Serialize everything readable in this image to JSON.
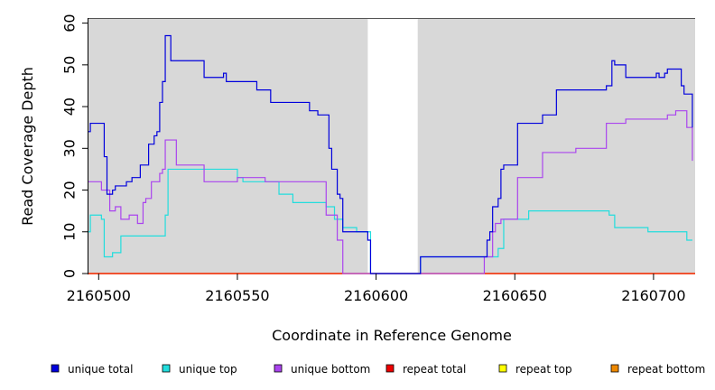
{
  "chart_data": {
    "type": "line",
    "title": "",
    "xlabel": "Coordinate in Reference Genome",
    "ylabel": "Read Coverage Depth",
    "xlim": [
      2160496,
      2160715
    ],
    "ylim": [
      0,
      61
    ],
    "x_ticks": [
      2160500,
      2160550,
      2160600,
      2160650,
      2160700
    ],
    "x_tick_labels": [
      "2160500",
      "2160550",
      "2160600",
      "2160650",
      "2160700"
    ],
    "y_ticks": [
      0,
      10,
      20,
      30,
      40,
      50,
      60
    ],
    "y_tick_labels": [
      "0",
      "10",
      "20",
      "30",
      "40",
      "50",
      "60"
    ],
    "plot_background": "#d8d8d8",
    "uncovered_region": [
      2160597,
      2160615
    ],
    "uncovered_color": "#ffffff",
    "grid": false,
    "legend_position": "bottom",
    "series": [
      {
        "name": "unique total",
        "color": "#0000dd",
        "step": true,
        "x": [
          2160496,
          2160497,
          2160501,
          2160502,
          2160503,
          2160505,
          2160506,
          2160507,
          2160508,
          2160510,
          2160511,
          2160512,
          2160513,
          2160514,
          2160515,
          2160518,
          2160519,
          2160520,
          2160521,
          2160522,
          2160523,
          2160524,
          2160525,
          2160526,
          2160528,
          2160538,
          2160545,
          2160545,
          2160546,
          2160557,
          2160558,
          2160562,
          2160564,
          2160576,
          2160577,
          2160579,
          2160579,
          2160582,
          2160583,
          2160584,
          2160586,
          2160587,
          2160588,
          2160589,
          2160597,
          2160597,
          2160598,
          2160615,
          2160616,
          2160637,
          2160640,
          2160641,
          2160642,
          2160644,
          2160645,
          2160646,
          2160646,
          2160648,
          2160651,
          2160652,
          2160660,
          2160665,
          2160667,
          2160683,
          2160684,
          2160685,
          2160686,
          2160690,
          2160701,
          2160702,
          2160704,
          2160705,
          2160708,
          2160710,
          2160711,
          2160714
        ],
        "y": [
          34,
          36,
          36,
          28,
          19,
          20,
          21,
          21,
          21,
          22,
          22,
          23,
          23,
          23,
          26,
          31,
          31,
          33,
          34,
          41,
          46,
          57,
          57,
          51,
          51,
          47,
          47,
          48,
          46,
          44,
          44,
          41,
          41,
          39,
          39,
          38,
          38,
          38,
          30,
          25,
          19,
          18,
          10,
          10,
          10,
          8,
          0,
          0,
          4,
          4,
          8,
          10,
          16,
          18,
          25,
          26,
          26,
          26,
          36,
          36,
          38,
          44,
          44,
          45,
          45,
          51,
          50,
          47,
          48,
          47,
          48,
          49,
          49,
          45,
          43,
          35
        ]
      },
      {
        "name": "unique top",
        "color": "#22dddd",
        "step": true,
        "x": [
          2160496,
          2160497,
          2160501,
          2160502,
          2160503,
          2160505,
          2160508,
          2160510,
          2160524,
          2160525,
          2160526,
          2160540,
          2160550,
          2160552,
          2160562,
          2160565,
          2160570,
          2160575,
          2160582,
          2160585,
          2160588,
          2160593,
          2160597,
          2160598,
          2160615,
          2160616,
          2160637,
          2160641,
          2160644,
          2160646,
          2160650,
          2160655,
          2160670,
          2160683,
          2160684,
          2160686,
          2160690,
          2160698,
          2160712,
          2160714
        ],
        "y": [
          10,
          14,
          13,
          4,
          4,
          5,
          9,
          9,
          14,
          25,
          25,
          25,
          23,
          22,
          22,
          19,
          17,
          17,
          16,
          13,
          11,
          10,
          10,
          0,
          0,
          4,
          4,
          4,
          6,
          13,
          13,
          15,
          15,
          15,
          14,
          11,
          11,
          10,
          8,
          8
        ]
      },
      {
        "name": "unique bottom",
        "color": "#aa44ee",
        "step": true,
        "x": [
          2160496,
          2160501,
          2160504,
          2160506,
          2160508,
          2160510,
          2160511,
          2160514,
          2160516,
          2160517,
          2160519,
          2160521,
          2160522,
          2160523,
          2160524,
          2160528,
          2160538,
          2160548,
          2160550,
          2160560,
          2160565,
          2160576,
          2160582,
          2160586,
          2160588,
          2160589,
          2160639,
          2160642,
          2160643,
          2160645,
          2160648,
          2160651,
          2160656,
          2160660,
          2160672,
          2160683,
          2160690,
          2160705,
          2160708,
          2160712,
          2160714
        ],
        "y": [
          22,
          20,
          15,
          16,
          13,
          13,
          14,
          12,
          17,
          18,
          22,
          22,
          24,
          25,
          32,
          26,
          22,
          22,
          23,
          22,
          22,
          22,
          14,
          8,
          0,
          0,
          4,
          10,
          12,
          13,
          13,
          23,
          23,
          29,
          30,
          36,
          37,
          38,
          39,
          35,
          27
        ]
      },
      {
        "name": "repeat total",
        "color": "#ee0000",
        "step": true,
        "x": [
          2160496,
          2160715
        ],
        "y": [
          0,
          0
        ]
      },
      {
        "name": "repeat top",
        "color": "#ffff00",
        "step": true,
        "x": [
          2160496,
          2160715
        ],
        "y": [
          0,
          0
        ]
      },
      {
        "name": "repeat bottom",
        "color": "#ee8800",
        "step": true,
        "x": [
          2160496,
          2160715
        ],
        "y": [
          0,
          0
        ]
      }
    ]
  }
}
